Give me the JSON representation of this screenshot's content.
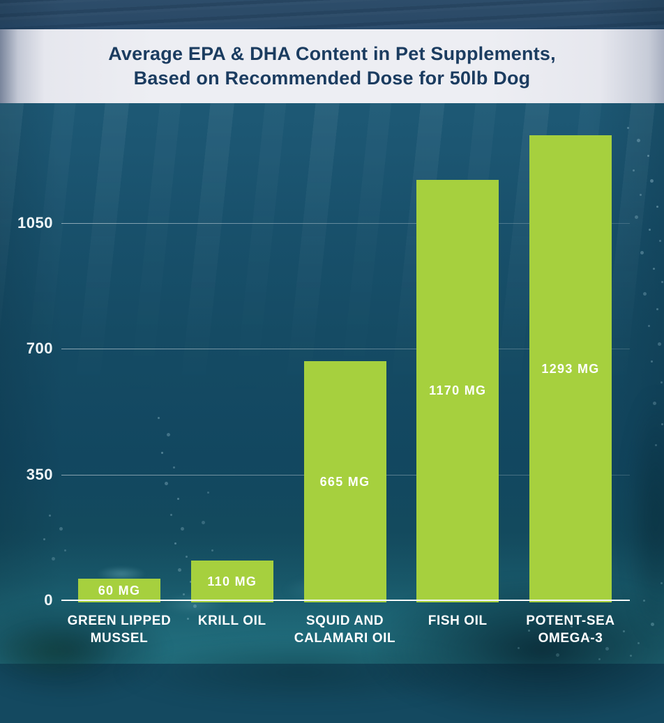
{
  "header": {
    "title_line1": "Average EPA & DHA Content in Pet Supplements,",
    "title_line2": "Based on Recommended Dose for 50lb Dog"
  },
  "colors": {
    "bar_green": "#a6d03e",
    "title_navy": "#1b3c60",
    "header_band": "#edeef3",
    "axis_line_white": "#f4f8f9",
    "tick_text_white": "#eff5f7",
    "ocean_surface": "#2d4d6a",
    "ocean_deep": "#124760",
    "seabed_teal": "#1e6877"
  },
  "chart_data": {
    "type": "bar",
    "title": "Average EPA & DHA Content in Pet Supplements, Based on Recommended Dose for 50lb Dog",
    "categories": [
      "GREEN LIPPED MUSSEL",
      "KRILL OIL",
      "SQUID AND CALAMARI OIL",
      "FISH OIL",
      "POTENT-SEA OMEGA-3"
    ],
    "category_labels": [
      "GREEN LIPPED\nMUSSEL",
      "KRILL OIL",
      "SQUID AND\nCALAMARI OIL",
      "FISH OIL",
      "POTENT-SEA\nOMEGA-3"
    ],
    "values": [
      60,
      110,
      665,
      1170,
      1293
    ],
    "value_labels": [
      "60 MG",
      "110 MG",
      "665 MG",
      "1170 MG",
      "1293 MG"
    ],
    "unit": "MG",
    "xlabel": "",
    "ylabel": "",
    "y_ticks": [
      0,
      350,
      700,
      1050
    ],
    "y_tick_labels": [
      "0",
      "350",
      "700",
      "1050"
    ],
    "ylim": [
      0,
      1350
    ],
    "grid": true,
    "legend": false,
    "bar_color": "#a6d03e",
    "label_color": "#ffffff",
    "background": "underwater ocean scene"
  }
}
